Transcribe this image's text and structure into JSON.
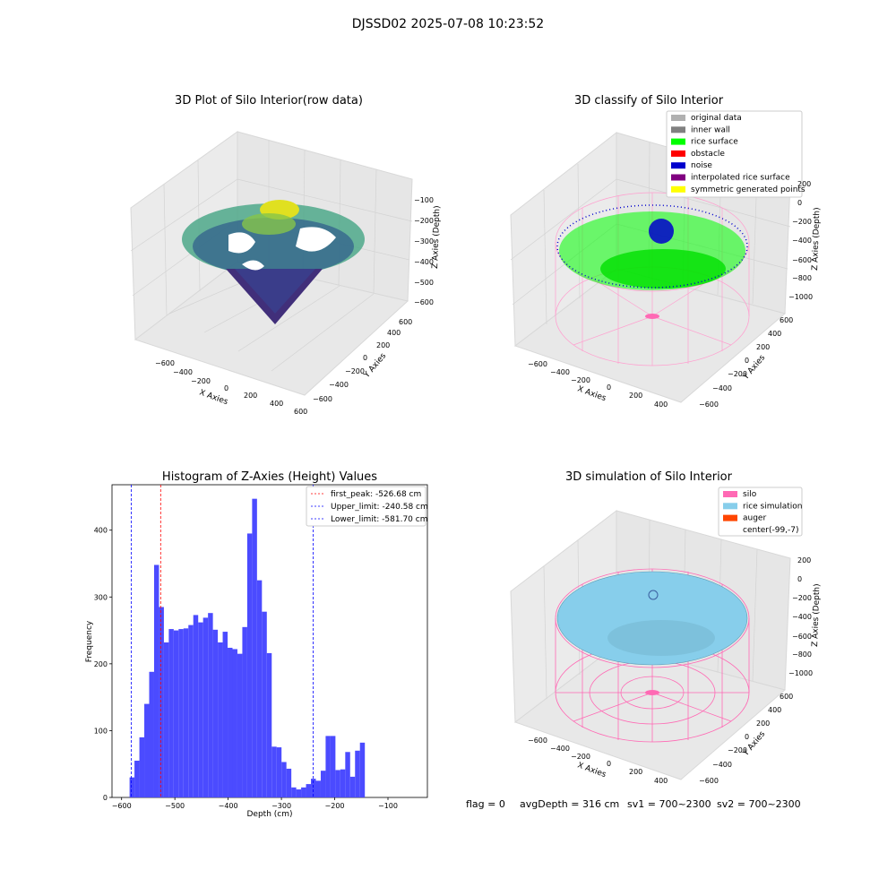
{
  "suptitle": "DJSSD02 2025-07-08 10:23:52",
  "footer": {
    "flag": "flag = 0",
    "avg_depth": "avgDepth = 316 cm",
    "sv1": "sv1 = 700~2300",
    "sv2": "sv2 = 700~2300"
  },
  "colors": {
    "hist_bar": "#4b4bff",
    "peak_line": "#ff0000",
    "limit_line": "#0000ff",
    "silo": "#ff69b4",
    "rice_sim": "#87ceeb",
    "auger": "#ff4500",
    "rice_surface": "#00ff00",
    "noise": "#0000cd"
  },
  "chart_data": [
    {
      "type": "scatter3d",
      "title": "3D Plot of Silo Interior(row data)",
      "xlabel": "X Axies",
      "ylabel": "Y Axies",
      "zlabel": "Z Axies (Depth)",
      "xticks": [
        "−600",
        "−400",
        "−200",
        "0",
        "200",
        "400",
        "600"
      ],
      "yticks": [
        "−600",
        "−400",
        "−200",
        "0",
        "200",
        "400",
        "600"
      ],
      "zticks": [
        "−100",
        "−200",
        "−300",
        "−400",
        "−500",
        "−600"
      ]
    },
    {
      "type": "scatter3d",
      "title": "3D classify of Silo Interior",
      "xlabel": "X Axies",
      "ylabel": "Y Axies",
      "zlabel": "Z Axies (Depth)",
      "xticks": [
        "−600",
        "−400",
        "−200",
        "0",
        "200",
        "400"
      ],
      "yticks": [
        "−600",
        "−400",
        "−200",
        "0",
        "200",
        "400",
        "600"
      ],
      "zticks": [
        "200",
        "0",
        "−200",
        "−400",
        "−600",
        "−800",
        "−1000"
      ],
      "legend": [
        {
          "label": "original data",
          "color": "#b0b0b0"
        },
        {
          "label": "inner wall",
          "color": "#808080"
        },
        {
          "label": "rice surface",
          "color": "#00ff00"
        },
        {
          "label": "obstacle",
          "color": "#ff0000"
        },
        {
          "label": "noise",
          "color": "#0000cd"
        },
        {
          "label": "interpolated rice surface",
          "color": "#800080"
        },
        {
          "label": "symmetric generated points",
          "color": "#ffff00"
        }
      ]
    },
    {
      "type": "histogram",
      "title": "Histogram of Z-Axies (Height) Values",
      "xlabel": "Depth (cm)",
      "ylabel": "Frequency",
      "xlim": [
        -618,
        -26
      ],
      "ylim": [
        0,
        468
      ],
      "xticks": [
        -600,
        -500,
        -400,
        -300,
        -200,
        -100
      ],
      "xtick_labels": [
        "−600",
        "−500",
        "−400",
        "−300",
        "−200",
        "−100"
      ],
      "yticks": [
        0,
        100,
        200,
        300,
        400
      ],
      "bin_start": -585,
      "bin_width": 9.2,
      "values": [
        30,
        55,
        90,
        140,
        188,
        348,
        285,
        232,
        252,
        250,
        252,
        253,
        258,
        273,
        262,
        269,
        276,
        251,
        232,
        248,
        224,
        222,
        215,
        255,
        395,
        447,
        325,
        278,
        216,
        76,
        75,
        53,
        43,
        15,
        12,
        15,
        20,
        28,
        25,
        40,
        92,
        92,
        41,
        42,
        68,
        31,
        70,
        82
      ],
      "vlines": [
        {
          "label": "first_peak: -526.68 cm",
          "x": -526.68,
          "color": "#ff0000"
        },
        {
          "label": "Upper_limit: -240.58 cm",
          "x": -240.58,
          "color": "#0000ff"
        },
        {
          "label": "Lower_limit: -581.70 cm",
          "x": -581.7,
          "color": "#0000ff"
        }
      ]
    },
    {
      "type": "surface3d",
      "title": "3D simulation of Silo Interior",
      "xlabel": "X Axies",
      "ylabel": "Y Axies",
      "zlabel": "Z Axies (Depth)",
      "xticks": [
        "−600",
        "−400",
        "−200",
        "0",
        "200",
        "400"
      ],
      "yticks": [
        "−600",
        "−400",
        "−200",
        "0",
        "200",
        "400",
        "600"
      ],
      "zticks": [
        "200",
        "0",
        "−200",
        "−400",
        "−600",
        "−800",
        "−1000"
      ],
      "legend": [
        {
          "label": "silo",
          "color": "#ff69b4"
        },
        {
          "label": "rice simulation",
          "color": "#87ceeb"
        },
        {
          "label": "auger",
          "color": "#ff4500"
        },
        {
          "label": "center(-99,-7)",
          "color": "none"
        }
      ]
    }
  ]
}
